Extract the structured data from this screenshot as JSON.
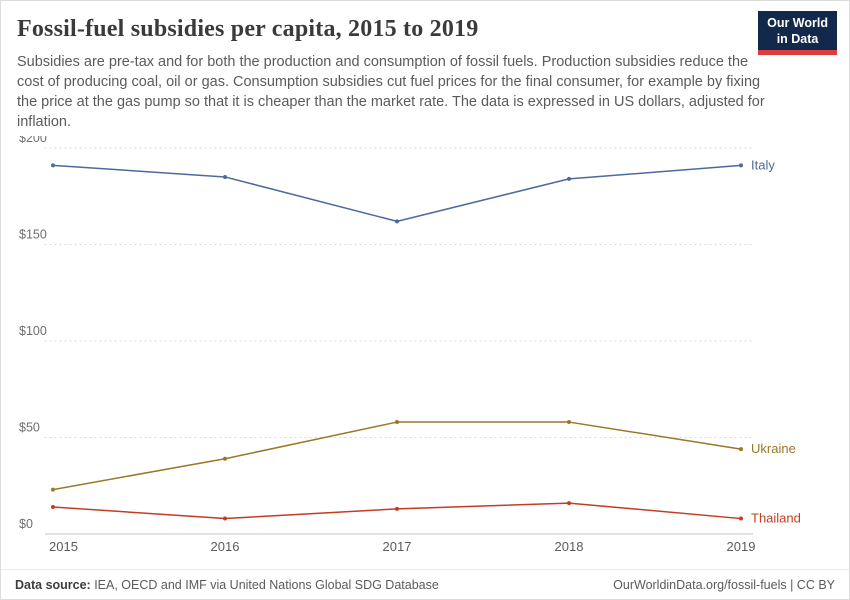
{
  "header": {
    "title": "Fossil-fuel subsidies per capita, 2015 to 2019",
    "logo": {
      "line1": "Our World",
      "line2": "in Data"
    }
  },
  "subtitle": "Subsidies are pre-tax and for both the production and consumption of fossil fuels. Production subsidies reduce the cost of producing coal, oil or gas. Consumption subsidies cut fuel prices for the final consumer, for example by fixing the price at the gas pump so that it is cheaper than the market rate. The data is expressed in US dollars, adjusted for inflation.",
  "chart_data": {
    "type": "line",
    "x": [
      2015,
      2016,
      2017,
      2018,
      2019
    ],
    "xtick_labels": [
      "2015",
      "2016",
      "2017",
      "2018",
      "2019"
    ],
    "series": [
      {
        "name": "Italy",
        "color": "#4C6A9C",
        "values": [
          191,
          185,
          162,
          184,
          191
        ]
      },
      {
        "name": "Ukraine",
        "color": "#9B7728",
        "values": [
          23,
          39,
          58,
          58,
          44
        ]
      },
      {
        "name": "Thailand",
        "color": "#C23D23",
        "values": [
          14,
          8,
          13,
          16,
          8
        ]
      }
    ],
    "ylim": [
      0,
      200
    ],
    "yticks": [
      0,
      50,
      100,
      150,
      200
    ],
    "ytick_labels": [
      "$0",
      "$50",
      "$100",
      "$150",
      "$200"
    ],
    "ylabel": "",
    "xlabel": "",
    "grid": "horizontal-dotted",
    "legend_position": "right-end-labels"
  },
  "footer": {
    "source_label": "Data source:",
    "source": " IEA, OECD and IMF via United Nations Global SDG Database",
    "right": "OurWorldinData.org/fossil-fuels | CC BY"
  }
}
